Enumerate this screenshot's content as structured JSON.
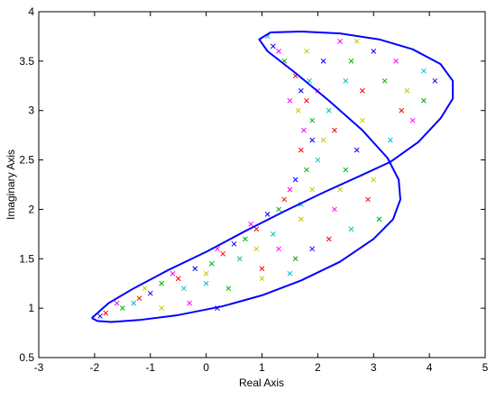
{
  "chart_data": {
    "type": "scatter",
    "xlabel": "Real Axis",
    "ylabel": "Imaginary Axis",
    "xlim": [
      -3,
      5
    ],
    "xticks": [
      -3,
      -2,
      -1,
      0,
      1,
      2,
      3,
      4,
      5
    ],
    "ylim": [
      0.5,
      4
    ],
    "yticks": [
      0.5,
      1,
      1.5,
      2,
      2.5,
      3,
      3.5,
      4
    ],
    "curve": {
      "color": "#0000ff",
      "x": [
        -2.05,
        -1.75,
        -1.3,
        -0.7,
        0,
        0.7,
        1.4,
        2.1,
        2.8,
        3.3,
        3.8,
        4.2,
        4.42,
        4.42,
        4.2,
        3.7,
        3.1,
        2.4,
        1.7,
        1.15,
        0.95,
        1.1,
        1.6,
        2.2,
        2.8,
        3.25,
        3.45,
        3.48,
        3.35,
        3.0,
        2.4,
        1.7,
        1.0,
        0.3,
        -0.5,
        -1.2,
        -1.7,
        -1.95,
        -2.05
      ],
      "y": [
        0.9,
        1.05,
        1.2,
        1.38,
        1.57,
        1.78,
        1.98,
        2.17,
        2.35,
        2.48,
        2.68,
        2.92,
        3.12,
        3.3,
        3.47,
        3.62,
        3.72,
        3.78,
        3.8,
        3.79,
        3.72,
        3.6,
        3.38,
        3.1,
        2.8,
        2.52,
        2.3,
        2.1,
        1.9,
        1.7,
        1.47,
        1.28,
        1.13,
        1.02,
        0.93,
        0.88,
        0.86,
        0.87,
        0.9
      ]
    },
    "series": [
      {
        "color": "#ff0000",
        "x": [
          -1.8,
          -1.2,
          -0.5,
          0.3,
          0.9,
          1.4,
          1.7,
          1.8,
          1.6,
          2.3,
          2.8,
          3.5,
          2.2,
          1.0,
          2.9
        ],
        "y": [
          0.95,
          1.1,
          1.3,
          1.55,
          1.8,
          2.1,
          2.6,
          3.1,
          3.35,
          2.8,
          3.2,
          3.0,
          1.7,
          1.4,
          2.1
        ]
      },
      {
        "color": "#00b000",
        "x": [
          -1.5,
          -0.8,
          0.1,
          0.7,
          1.3,
          1.8,
          1.9,
          1.4,
          2.6,
          3.2,
          3.9,
          2.5,
          1.6,
          0.4,
          3.1
        ],
        "y": [
          1.0,
          1.25,
          1.45,
          1.7,
          2.0,
          2.4,
          2.9,
          3.5,
          3.5,
          3.3,
          3.1,
          2.4,
          1.5,
          1.2,
          1.9
        ]
      },
      {
        "color": "#0000ff",
        "x": [
          -1.9,
          -1.0,
          -0.2,
          0.5,
          1.1,
          1.6,
          1.9,
          1.7,
          1.2,
          2.1,
          3.0,
          4.1,
          2.7,
          1.9,
          0.2
        ],
        "y": [
          0.92,
          1.15,
          1.4,
          1.65,
          1.95,
          2.3,
          2.7,
          3.2,
          3.65,
          3.5,
          3.6,
          3.3,
          2.6,
          1.6,
          1.0
        ]
      },
      {
        "color": "#ff00ff",
        "x": [
          -1.6,
          -0.6,
          0.2,
          0.8,
          1.5,
          1.75,
          1.5,
          1.3,
          2.0,
          2.4,
          3.4,
          3.7,
          2.3,
          1.3,
          -0.3
        ],
        "y": [
          1.05,
          1.35,
          1.6,
          1.85,
          2.2,
          2.8,
          3.1,
          3.6,
          3.2,
          3.7,
          3.5,
          2.9,
          2.0,
          1.6,
          1.05
        ]
      },
      {
        "color": "#00bfbf",
        "x": [
          -1.3,
          -0.4,
          0.6,
          1.2,
          1.7,
          2.0,
          1.85,
          1.1,
          2.5,
          3.3,
          3.9,
          2.6,
          1.5,
          0.0,
          2.2
        ],
        "y": [
          1.05,
          1.2,
          1.5,
          1.75,
          2.05,
          2.5,
          3.3,
          3.75,
          3.3,
          2.7,
          3.4,
          1.8,
          1.35,
          1.25,
          3.0
        ]
      },
      {
        "color": "#c8c800",
        "x": [
          -1.1,
          0.0,
          0.9,
          1.7,
          1.9,
          2.1,
          1.65,
          1.8,
          2.8,
          3.6,
          2.4,
          1.0,
          3.0,
          2.7,
          -0.8
        ],
        "y": [
          1.2,
          1.35,
          1.6,
          1.9,
          2.2,
          2.7,
          3.0,
          3.6,
          2.9,
          3.2,
          2.2,
          1.3,
          2.3,
          3.7,
          1.0
        ]
      }
    ]
  }
}
